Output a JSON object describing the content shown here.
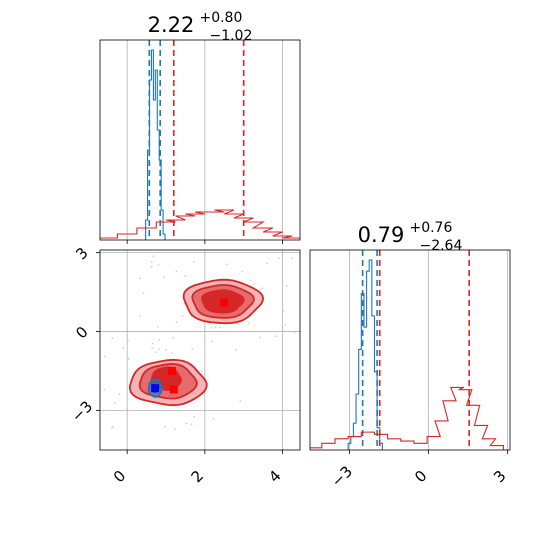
{
  "chart_data": {
    "type": "corner",
    "parameters": [
      {
        "title_value": "2.22",
        "title_upper": "+0.80",
        "title_lower": "−1.02",
        "range": [
          -0.7,
          4.45
        ],
        "ticks": [
          0,
          2,
          4
        ],
        "tick_labels": [
          "0",
          "2",
          "4"
        ]
      },
      {
        "title_value": "0.79",
        "title_upper": "+0.76",
        "title_lower": "−2.64",
        "range": [
          -4.5,
          3.1
        ],
        "ticks": [
          -3,
          0,
          3
        ],
        "tick_labels": [
          "−3",
          "0",
          "3"
        ]
      }
    ],
    "series": [
      {
        "color": "#1f77b4",
        "hist_p0": {
          "x": [
            0.5,
            0.55,
            0.6,
            0.65,
            0.7,
            0.75,
            0.8,
            0.85,
            0.9,
            0.95
          ],
          "density": [
            0.1,
            0.45,
            0.8,
            0.95,
            0.7,
            0.85,
            0.55,
            0.4,
            0.15,
            0.03
          ]
        },
        "quantiles_p0": [
          0.57,
          0.85
        ],
        "hist_p1": {
          "x": [
            -3.0,
            -2.9,
            -2.8,
            -2.7,
            -2.6,
            -2.5,
            -2.4,
            -2.3,
            -2.2,
            -2.1,
            -2.0,
            -1.9,
            -1.8
          ],
          "density": [
            0.03,
            0.06,
            0.12,
            0.25,
            0.45,
            0.7,
            0.55,
            0.8,
            0.85,
            0.6,
            0.35,
            0.1,
            0.03
          ]
        },
        "quantiles_p1": [
          -2.5,
          -1.95
        ],
        "marker": {
          "x": 0.72,
          "y": -2.15
        }
      },
      {
        "color": "#d62728",
        "hist_p0": {
          "x": [
            -0.5,
            0.0,
            0.5,
            1.0,
            1.25,
            1.5,
            1.75,
            2.0,
            2.25,
            2.5,
            2.75,
            3.0,
            3.25,
            3.5,
            3.75,
            4.0,
            4.25
          ],
          "density": [
            0.01,
            0.03,
            0.06,
            0.09,
            0.1,
            0.12,
            0.13,
            0.14,
            0.14,
            0.15,
            0.13,
            0.11,
            0.09,
            0.06,
            0.04,
            0.02,
            0.01
          ]
        },
        "quantiles_p0": [
          1.2,
          3.0
        ],
        "hist_p1": {
          "x": [
            -4.3,
            -3.8,
            -3.3,
            -2.8,
            -2.3,
            -1.8,
            -1.3,
            -0.8,
            -0.3,
            0.2,
            0.5,
            0.8,
            1.1,
            1.4,
            1.7,
            2.0,
            2.3,
            2.6
          ],
          "density": [
            0.01,
            0.03,
            0.05,
            0.06,
            0.08,
            0.07,
            0.05,
            0.04,
            0.03,
            0.06,
            0.13,
            0.22,
            0.28,
            0.27,
            0.2,
            0.11,
            0.05,
            0.02
          ]
        },
        "quantiles_p1": [
          -1.85,
          1.55
        ],
        "markers": [
          {
            "x": 2.5,
            "y": 1.1
          },
          {
            "x": 1.15,
            "y": -1.5
          },
          {
            "x": 1.2,
            "y": -2.2
          }
        ]
      }
    ],
    "contours": {
      "red": [
        {
          "cx": 2.45,
          "cy": 1.15,
          "rx": 2.0,
          "ry": 1.65,
          "level": 0
        },
        {
          "cx": 2.45,
          "cy": 1.15,
          "rx": 1.55,
          "ry": 1.25,
          "level": 1
        },
        {
          "cx": 2.45,
          "cy": 1.15,
          "rx": 1.05,
          "ry": 0.85,
          "level": 2
        },
        {
          "cx": 1.05,
          "cy": -1.95,
          "rx": 1.95,
          "ry": 1.7,
          "level": 0
        },
        {
          "cx": 1.05,
          "cy": -1.9,
          "rx": 1.45,
          "ry": 1.3,
          "level": 1
        },
        {
          "cx": 1.0,
          "cy": -1.8,
          "rx": 0.75,
          "ry": 0.85,
          "level": 2
        }
      ],
      "blue": [
        {
          "cx": 0.72,
          "cy": -2.15,
          "rx": 0.32,
          "ry": 0.65
        },
        {
          "cx": 0.72,
          "cy": -2.15,
          "rx": 0.18,
          "ry": 0.38
        }
      ]
    }
  }
}
